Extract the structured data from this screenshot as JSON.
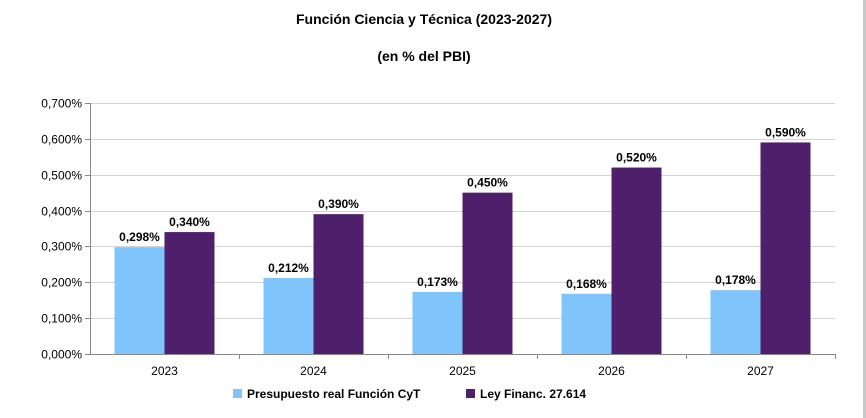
{
  "chart_data": {
    "type": "bar",
    "title": "Función Ciencia y Técnica (2023-2027)",
    "subtitle": "(en % del PBI)",
    "xlabel": "",
    "ylabel": "",
    "categories": [
      "2023",
      "2024",
      "2025",
      "2026",
      "2027"
    ],
    "series": [
      {
        "name": "Presupuesto real Función CyT",
        "color": "#7fc4fb",
        "values": [
          0.298,
          0.212,
          0.173,
          0.168,
          0.178
        ],
        "value_labels": [
          "0,298%",
          "0,212%",
          "0,173%",
          "0,168%",
          "0,178%"
        ]
      },
      {
        "name": "Ley Financ. 27.614",
        "color": "#4e1f6b",
        "values": [
          0.34,
          0.39,
          0.45,
          0.52,
          0.59
        ],
        "value_labels": [
          "0,340%",
          "0,390%",
          "0,450%",
          "0,520%",
          "0,590%"
        ]
      }
    ],
    "ylim": [
      0,
      0.7
    ],
    "yticks": [
      0,
      0.1,
      0.2,
      0.3,
      0.4,
      0.5,
      0.6,
      0.7
    ],
    "ytick_labels": [
      "0,000%",
      "0,100%",
      "0,200%",
      "0,300%",
      "0,400%",
      "0,500%",
      "0,600%",
      "0,700%"
    ],
    "grid": true,
    "legend": "bottom"
  }
}
